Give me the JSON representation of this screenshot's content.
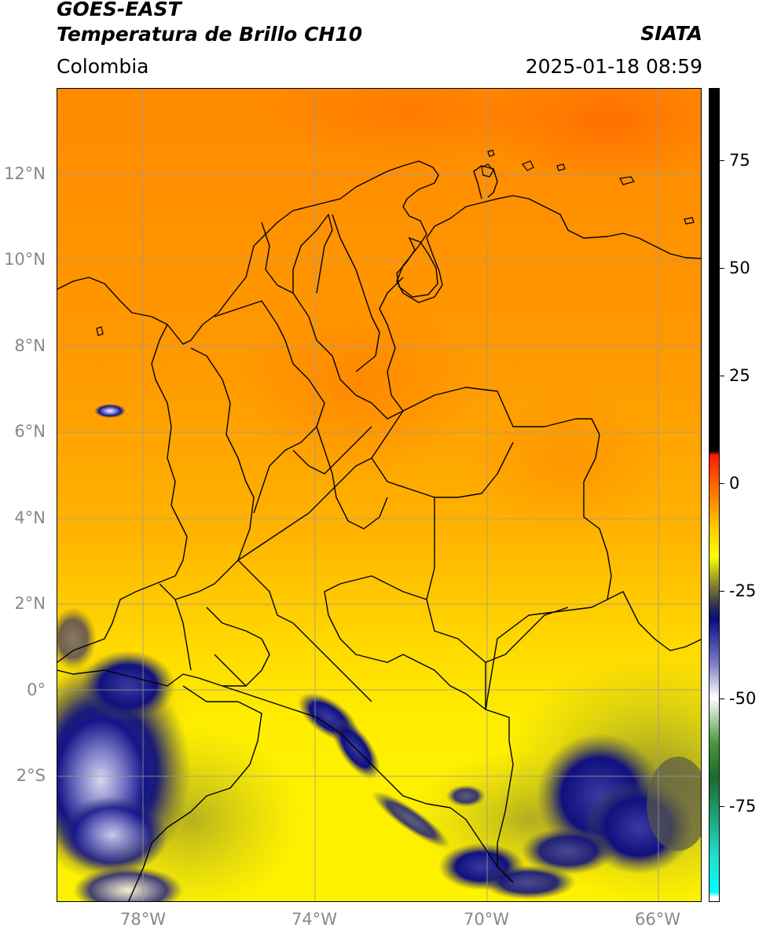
{
  "header": {
    "satellite": "GOES-EAST",
    "product": "Temperatura de Brillo CH10",
    "agency": "SIATA",
    "region": "Colombia",
    "datetime": "2025-01-18 08:59"
  },
  "axes": {
    "lat_labels": [
      "12°N",
      "10°N",
      "8°N",
      "6°N",
      "4°N",
      "2°N",
      "0°",
      "2°S"
    ],
    "lon_labels": [
      "78°W",
      "74°W",
      "70°W",
      "66°W"
    ]
  },
  "colorbar": {
    "labels": [
      "75",
      "50",
      "25",
      "0",
      "-25",
      "-50",
      "-75"
    ],
    "stops": [
      {
        "value": 90,
        "color": "#000000"
      },
      {
        "value": 8,
        "color": "#000000"
      },
      {
        "value": 7,
        "color": "#ff1a00"
      },
      {
        "value": 0,
        "color": "#ff6a00"
      },
      {
        "value": -10,
        "color": "#ffd000"
      },
      {
        "value": -16,
        "color": "#ffff00"
      },
      {
        "value": -22,
        "color": "#8a8a2a"
      },
      {
        "value": -27,
        "color": "#303050"
      },
      {
        "value": -30,
        "color": "#0a0a80"
      },
      {
        "value": -40,
        "color": "#7a7ac8"
      },
      {
        "value": -48,
        "color": "#ffffff"
      },
      {
        "value": -58,
        "color": "#4a9a3a"
      },
      {
        "value": -66,
        "color": "#1a6a2a"
      },
      {
        "value": -84,
        "color": "#20e0d0"
      },
      {
        "value": -92,
        "color": "#00ffff"
      },
      {
        "value": -93,
        "color": "#ffffff"
      }
    ]
  },
  "colors": {
    "warm_top": "#ff7a00",
    "mid_orange": "#ff9c00",
    "yellow": "#ffee00",
    "deep_cloud": "#0e0e7a",
    "cloud_white": "#e8e8f6",
    "olive": "#8a8a30",
    "gridline": "#9a9a9a",
    "border": "#000000"
  }
}
